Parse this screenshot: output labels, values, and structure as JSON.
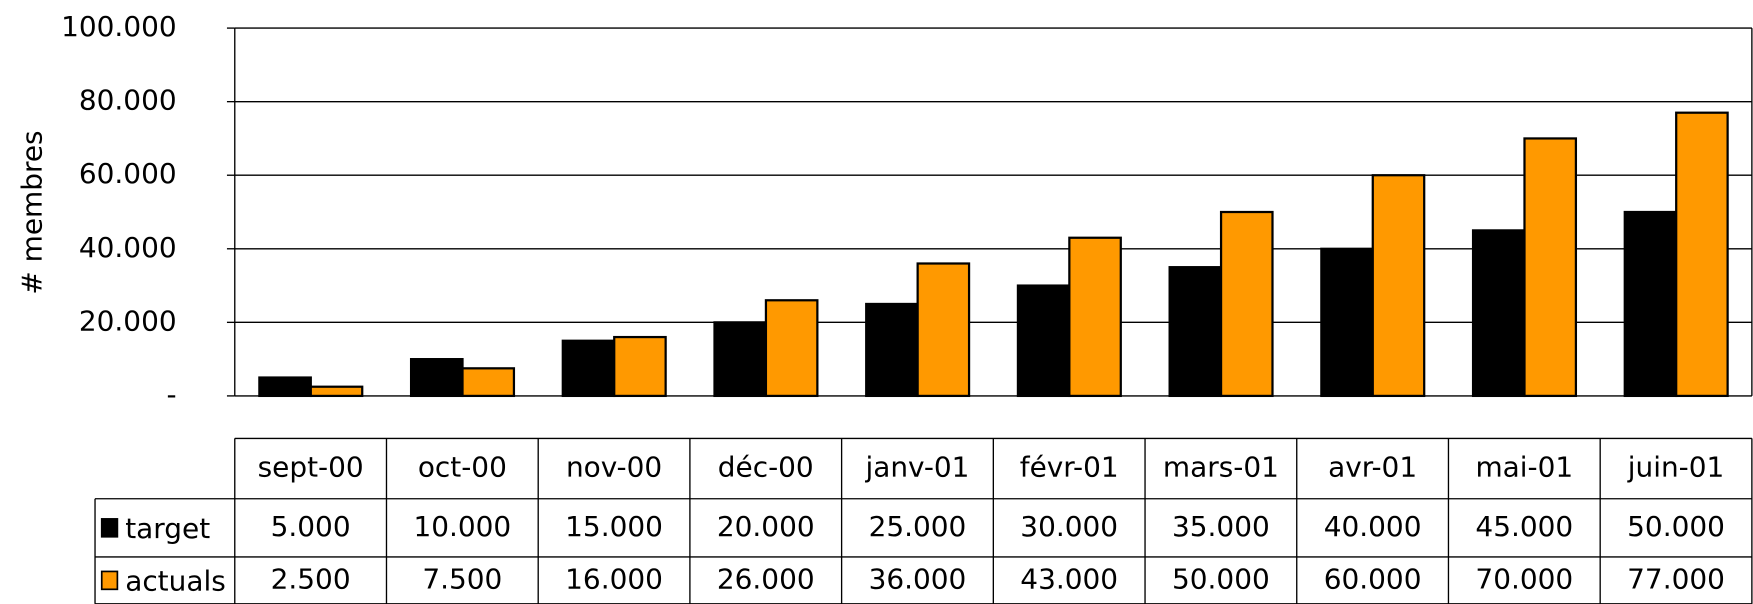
{
  "chart_data": {
    "type": "bar",
    "y_label": "# membres",
    "categories": [
      "sept-00",
      "oct-00",
      "nov-00",
      "déc-00",
      "janv-01",
      "févr-01",
      "mars-01",
      "avr-01",
      "mai-01",
      "juin-01"
    ],
    "series": [
      {
        "name": "target",
        "color": "#000000",
        "values": [
          5000,
          10000,
          15000,
          20000,
          25000,
          30000,
          35000,
          40000,
          45000,
          50000
        ],
        "value_labels": [
          "5.000",
          "10.000",
          "15.000",
          "20.000",
          "25.000",
          "30.000",
          "35.000",
          "40.000",
          "45.000",
          "50.000"
        ]
      },
      {
        "name": "actuals",
        "color": "#ff9900",
        "values": [
          2500,
          7500,
          16000,
          26000,
          36000,
          43000,
          50000,
          60000,
          70000,
          77000
        ],
        "value_labels": [
          "2.500",
          "7.500",
          "16.000",
          "26.000",
          "36.000",
          "43.000",
          "50.000",
          "60.000",
          "70.000",
          "77.000"
        ]
      }
    ],
    "ylim": [
      0,
      100000
    ],
    "yticks": [
      {
        "value": 0,
        "label": "-"
      },
      {
        "value": 20000,
        "label": "20.000"
      },
      {
        "value": 40000,
        "label": "40.000"
      },
      {
        "value": 60000,
        "label": "60.000"
      },
      {
        "value": 80000,
        "label": "80.000"
      },
      {
        "value": 100000,
        "label": "100.000"
      }
    ],
    "grid": true
  }
}
